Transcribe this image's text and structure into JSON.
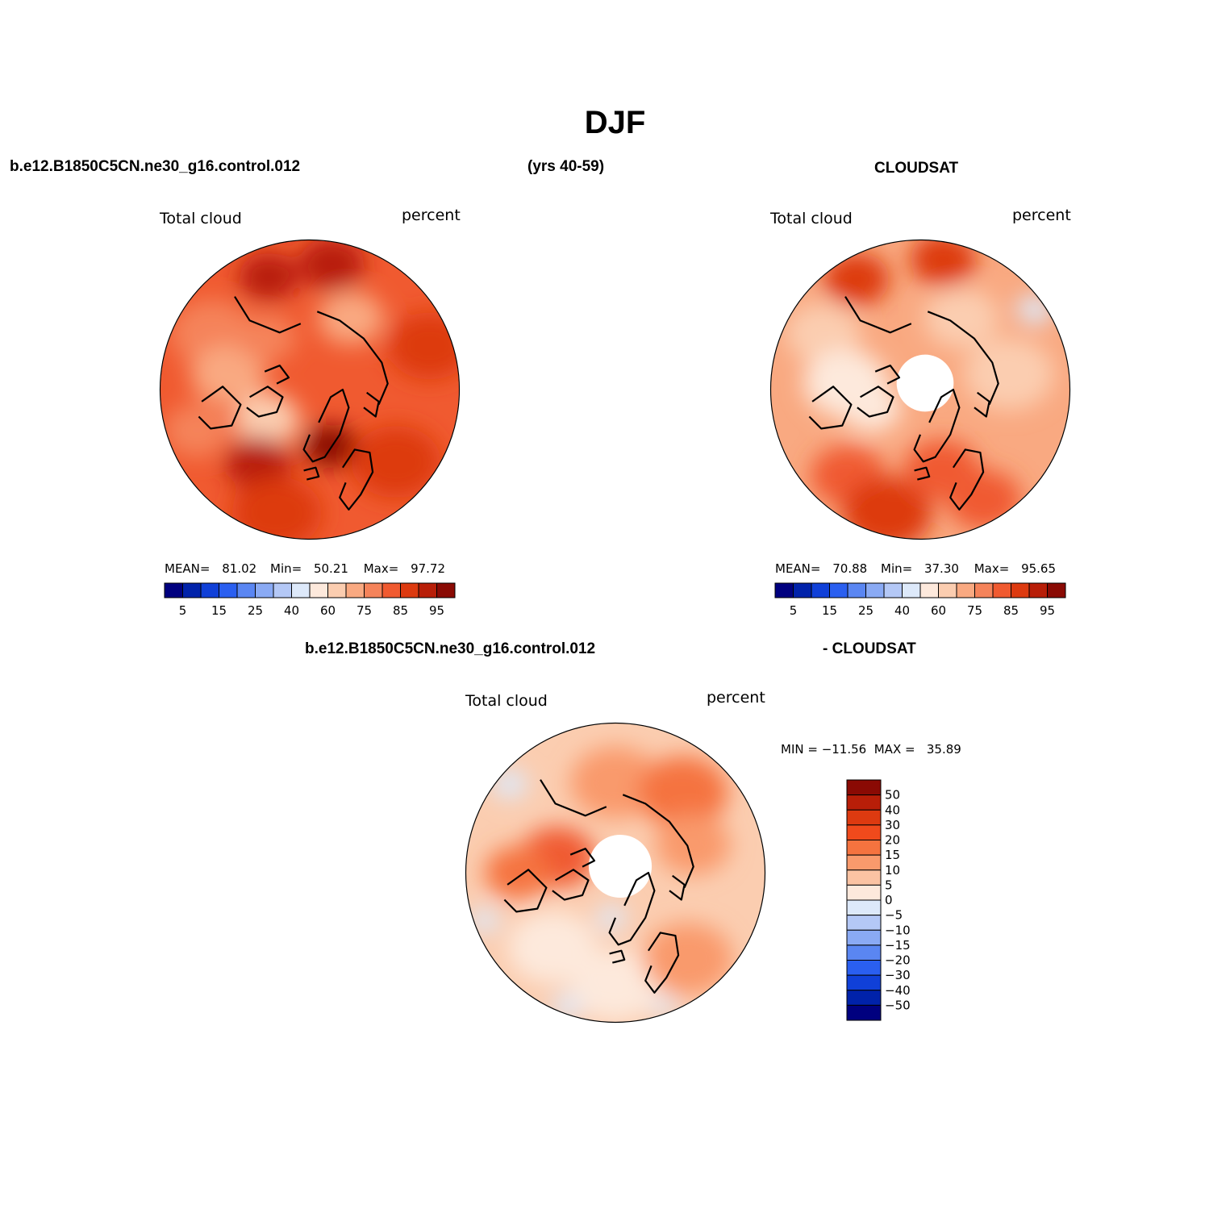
{
  "page": {
    "season": "DJF",
    "case_label": "b.e12.B1850C5CN.ne30_g16.control.012",
    "years_label": "(yrs 40-59)",
    "obs_label": "CLOUDSAT",
    "diff_case_label": "b.e12.B1850C5CN.ne30_g16.control.012",
    "diff_obs_label": "- CLOUDSAT"
  },
  "panels": {
    "model": {
      "variable": "Total cloud",
      "units": "percent",
      "mean_label": "MEAN=",
      "mean": "81.02",
      "min_label": "Min=",
      "min": "50.21",
      "max_label": "Max=",
      "max": "97.72"
    },
    "obs": {
      "variable": "Total cloud",
      "units": "percent",
      "mean_label": "MEAN=",
      "mean": "70.88",
      "min_label": "Min=",
      "min": "37.30",
      "max_label": "Max=",
      "max": "95.65"
    },
    "diff": {
      "variable": "Total cloud",
      "units": "percent",
      "minmax": "MIN = −11.56  MAX =   35.89"
    }
  },
  "colorbars": {
    "horizontal": {
      "colors": [
        "#00007f",
        "#0022aa",
        "#1040d8",
        "#2a5ff0",
        "#5a86f2",
        "#8aaaf4",
        "#b4c8f6",
        "#dde9fa",
        "#fde9dc",
        "#fbcdb0",
        "#f9a981",
        "#f5835a",
        "#f05a30",
        "#dd3a10",
        "#b81e08",
        "#8a0a04"
      ],
      "labels": [
        "5",
        "15",
        "25",
        "40",
        "60",
        "75",
        "85",
        "95"
      ]
    },
    "vertical": {
      "colors": [
        "#8a0a04",
        "#b81e08",
        "#dd3a10",
        "#f04a1c",
        "#f5733f",
        "#f99a6c",
        "#fbc3a3",
        "#fde9dc",
        "#dde9fa",
        "#b4c8f6",
        "#8aaaf4",
        "#5a86f2",
        "#2a5ff0",
        "#1040d8",
        "#0022aa",
        "#00007f"
      ],
      "labels": [
        "50",
        "40",
        "30",
        "20",
        "15",
        "10",
        "5",
        "0",
        "−5",
        "−10",
        "−15",
        "−20",
        "−30",
        "−40",
        "−50"
      ]
    }
  },
  "map_fields": {
    "model": {
      "base": "#f05a30",
      "blobs": [
        {
          "ang": 80,
          "r": 0.85,
          "s": 0.22,
          "color": "#b81e08"
        },
        {
          "ang": 110,
          "r": 0.8,
          "s": 0.2,
          "color": "#b81e08"
        },
        {
          "ang": 150,
          "r": 0.75,
          "s": 0.28,
          "color": "#f5835a"
        },
        {
          "ang": 170,
          "r": 0.55,
          "s": 0.25,
          "color": "#f9a981"
        },
        {
          "ang": 200,
          "r": 0.8,
          "s": 0.22,
          "color": "#f5835a"
        },
        {
          "ang": 215,
          "r": 0.35,
          "s": 0.22,
          "color": "#fbcdb0"
        },
        {
          "ang": 235,
          "r": 0.6,
          "s": 0.22,
          "color": "#b81e08"
        },
        {
          "ang": 255,
          "r": 0.85,
          "s": 0.3,
          "color": "#dd3a10"
        },
        {
          "ang": 290,
          "r": 0.4,
          "s": 0.18,
          "color": "#8a0a04"
        },
        {
          "ang": 320,
          "r": 0.75,
          "s": 0.3,
          "color": "#dd3a10"
        },
        {
          "ang": 20,
          "r": 0.85,
          "s": 0.28,
          "color": "#dd3a10"
        },
        {
          "ang": 60,
          "r": 0.55,
          "s": 0.22,
          "color": "#f9a981"
        },
        {
          "ang": 130,
          "r": 0.45,
          "s": 0.2,
          "color": "#f5835a"
        }
      ]
    },
    "obs": {
      "base": "#f9a981",
      "hole": 0.19,
      "blobs": [
        {
          "ang": 80,
          "r": 0.88,
          "s": 0.22,
          "color": "#dd3a10"
        },
        {
          "ang": 120,
          "r": 0.85,
          "s": 0.22,
          "color": "#dd3a10"
        },
        {
          "ang": 150,
          "r": 0.75,
          "s": 0.25,
          "color": "#fbcdb0"
        },
        {
          "ang": 175,
          "r": 0.5,
          "s": 0.28,
          "color": "#fde9dc"
        },
        {
          "ang": 200,
          "r": 0.35,
          "s": 0.2,
          "color": "#fde9dc"
        },
        {
          "ang": 230,
          "r": 0.75,
          "s": 0.25,
          "color": "#f05a30"
        },
        {
          "ang": 255,
          "r": 0.85,
          "s": 0.3,
          "color": "#dd3a10"
        },
        {
          "ang": 285,
          "r": 0.55,
          "s": 0.25,
          "color": "#f05a30"
        },
        {
          "ang": 300,
          "r": 0.85,
          "s": 0.25,
          "color": "#f05a30"
        },
        {
          "ang": 35,
          "r": 0.93,
          "s": 0.12,
          "color": "#dde9fa"
        },
        {
          "ang": 10,
          "r": 0.6,
          "s": 0.3,
          "color": "#fbcdb0"
        },
        {
          "ang": 60,
          "r": 0.55,
          "s": 0.25,
          "color": "#fbcdb0"
        }
      ]
    },
    "diff": {
      "base": "#fbcdb0",
      "hole": 0.21,
      "blobs": [
        {
          "ang": 165,
          "r": 0.4,
          "s": 0.25,
          "color": "#f05a30"
        },
        {
          "ang": 180,
          "r": 0.65,
          "s": 0.22,
          "color": "#f5733f"
        },
        {
          "ang": 90,
          "r": 0.6,
          "s": 0.3,
          "color": "#f99a6c"
        },
        {
          "ang": 50,
          "r": 0.7,
          "s": 0.3,
          "color": "#f5733f"
        },
        {
          "ang": 20,
          "r": 0.55,
          "s": 0.25,
          "color": "#f99a6c"
        },
        {
          "ang": 230,
          "r": 0.65,
          "s": 0.3,
          "color": "#fde9dc"
        },
        {
          "ang": 270,
          "r": 0.75,
          "s": 0.3,
          "color": "#fde9dc"
        },
        {
          "ang": 310,
          "r": 0.75,
          "s": 0.3,
          "color": "#f99a6c"
        },
        {
          "ang": 140,
          "r": 0.92,
          "s": 0.12,
          "color": "#dde9fa"
        },
        {
          "ang": 200,
          "r": 0.93,
          "s": 0.1,
          "color": "#dde9fa"
        },
        {
          "ang": 250,
          "r": 0.95,
          "s": 0.1,
          "color": "#dde9fa"
        },
        {
          "ang": 290,
          "r": 0.95,
          "s": 0.08,
          "color": "#dde9fa"
        },
        {
          "ang": 265,
          "r": 0.3,
          "s": 0.1,
          "color": "#dde9fa"
        }
      ]
    }
  }
}
